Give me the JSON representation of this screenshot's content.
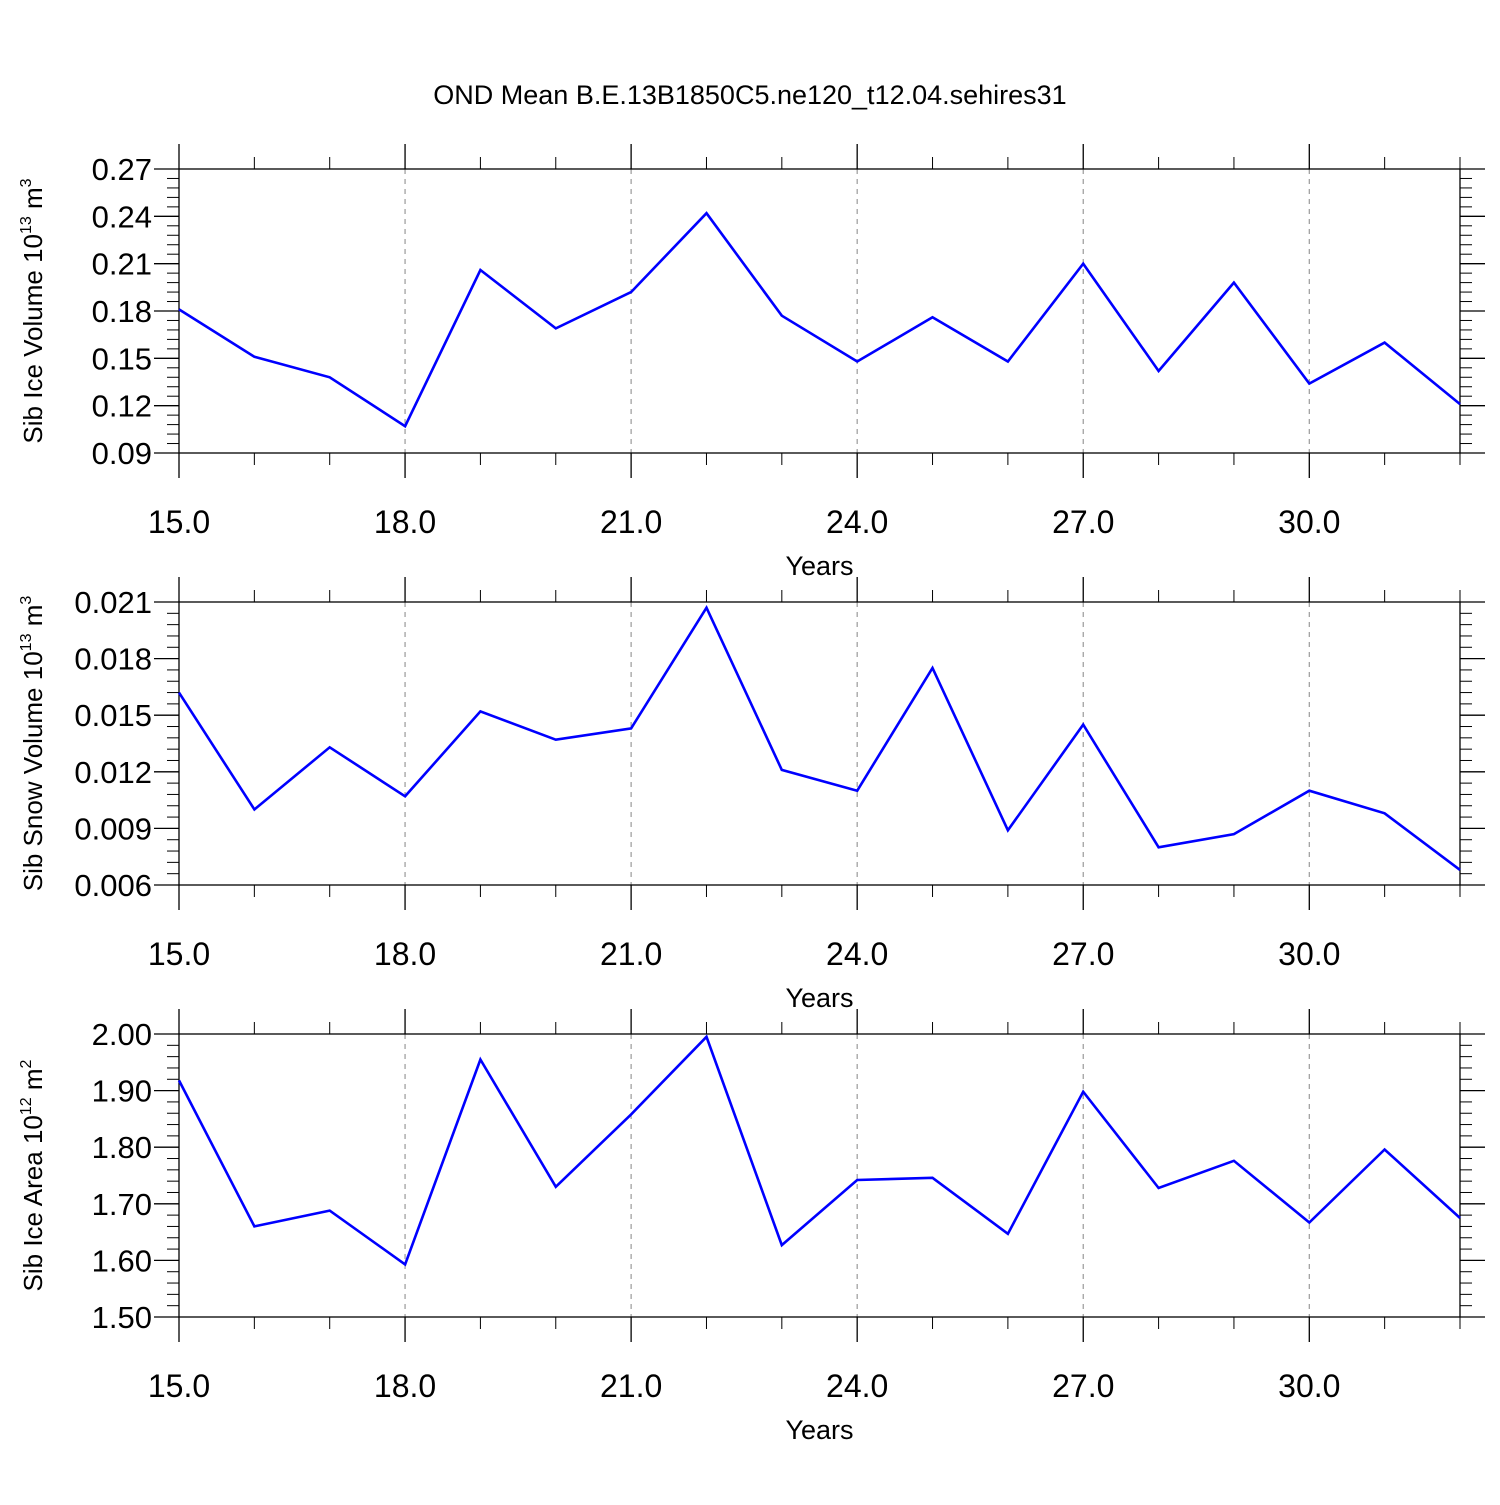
{
  "title": "OND Mean B.E.13B1850C5.ne120_t12.04.sehires31",
  "colors": {
    "line": "#0000ff",
    "axis": "#000000",
    "grid": "#999999"
  },
  "chart_data": [
    {
      "type": "line",
      "ylabel": {
        "text": "Sib Ice Volume 10",
        "sup": "13",
        "unit": " m",
        "unit_sup": "3"
      },
      "xlabel": "Years",
      "xlim": [
        15,
        32
      ],
      "ylim": [
        0.09,
        0.27
      ],
      "xticks": [
        15,
        18,
        21,
        24,
        27,
        30
      ],
      "xtick_labels": [
        "15.0",
        "18.0",
        "21.0",
        "24.0",
        "27.0",
        "30.0"
      ],
      "yticks": [
        0.09,
        0.12,
        0.15,
        0.18,
        0.21,
        0.24,
        0.27
      ],
      "ytick_labels": [
        "0.09",
        "0.12",
        "0.15",
        "0.18",
        "0.21",
        "0.24",
        "0.27"
      ],
      "grid": "vertical dashed at major x ticks",
      "x": [
        15,
        16,
        17,
        18,
        19,
        20,
        21,
        22,
        23,
        24,
        25,
        26,
        27,
        28,
        29,
        30,
        31,
        32
      ],
      "series": [
        {
          "values": [
            0.181,
            0.151,
            0.138,
            0.107,
            0.206,
            0.169,
            0.192,
            0.242,
            0.177,
            0.148,
            0.176,
            0.148,
            0.21,
            0.142,
            0.198,
            0.134,
            0.16,
            0.121
          ]
        }
      ]
    },
    {
      "type": "line",
      "ylabel": {
        "text": "Sib Snow Volume 10",
        "sup": "13",
        "unit": " m",
        "unit_sup": "3"
      },
      "xlabel": "Years",
      "xlim": [
        15,
        32
      ],
      "ylim": [
        0.006,
        0.021
      ],
      "xticks": [
        15,
        18,
        21,
        24,
        27,
        30
      ],
      "xtick_labels": [
        "15.0",
        "18.0",
        "21.0",
        "24.0",
        "27.0",
        "30.0"
      ],
      "yticks": [
        0.006,
        0.009,
        0.012,
        0.015,
        0.018,
        0.021
      ],
      "ytick_labels": [
        "0.006",
        "0.009",
        "0.012",
        "0.015",
        "0.018",
        "0.021"
      ],
      "grid": "vertical dashed at major x ticks",
      "x": [
        15,
        16,
        17,
        18,
        19,
        20,
        21,
        22,
        23,
        24,
        25,
        26,
        27,
        28,
        29,
        30,
        31,
        32
      ],
      "series": [
        {
          "values": [
            0.0162,
            0.01,
            0.0133,
            0.0107,
            0.0152,
            0.0137,
            0.0143,
            0.0207,
            0.0121,
            0.011,
            0.0175,
            0.0089,
            0.0145,
            0.008,
            0.0087,
            0.011,
            0.0098,
            0.0068
          ]
        }
      ]
    },
    {
      "type": "line",
      "ylabel": {
        "text": "Sib Ice Area 10",
        "sup": "12",
        "unit": " m",
        "unit_sup": "2"
      },
      "xlabel": "Years",
      "xlim": [
        15,
        32
      ],
      "ylim": [
        1.5,
        2.0
      ],
      "xticks": [
        15,
        18,
        21,
        24,
        27,
        30
      ],
      "xtick_labels": [
        "15.0",
        "18.0",
        "21.0",
        "24.0",
        "27.0",
        "30.0"
      ],
      "yticks": [
        1.5,
        1.6,
        1.7,
        1.8,
        1.9,
        2.0
      ],
      "ytick_labels": [
        "1.50",
        "1.60",
        "1.70",
        "1.80",
        "1.90",
        "2.00"
      ],
      "grid": "vertical dashed at major x ticks",
      "x": [
        15,
        16,
        17,
        18,
        19,
        20,
        21,
        22,
        23,
        24,
        25,
        26,
        27,
        28,
        29,
        30,
        31,
        32
      ],
      "series": [
        {
          "values": [
            1.918,
            1.66,
            1.688,
            1.593,
            1.955,
            1.73,
            1.858,
            1.995,
            1.627,
            1.742,
            1.746,
            1.647,
            1.898,
            1.728,
            1.776,
            1.667,
            1.796,
            1.675
          ]
        }
      ]
    }
  ]
}
